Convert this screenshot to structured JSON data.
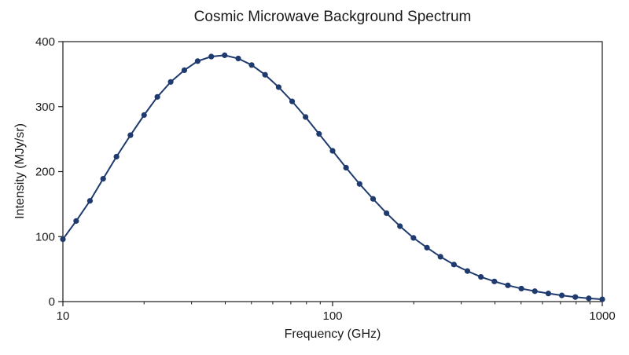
{
  "chart_data": {
    "type": "line",
    "title": "Cosmic Microwave Background Spectrum",
    "xlabel": "Frequency (GHz)",
    "ylabel": "Intensity (MJy/sr)",
    "x_scale": "log",
    "xlim": [
      10,
      1000
    ],
    "ylim": [
      0,
      400
    ],
    "x_ticks": [
      {
        "value": 10,
        "label": "10"
      },
      {
        "value": 100,
        "label": "100"
      },
      {
        "value": 1000,
        "label": "1000"
      }
    ],
    "y_ticks": [
      {
        "value": 0,
        "label": "0"
      },
      {
        "value": 100,
        "label": "100"
      },
      {
        "value": 200,
        "label": "200"
      },
      {
        "value": 300,
        "label": "300"
      },
      {
        "value": 400,
        "label": "400"
      }
    ],
    "grid": false,
    "legend": "none",
    "colors": {
      "series": "#1f3a6e",
      "axis": "#1a1a1a"
    },
    "series": [
      {
        "x": [
          10,
          11.2,
          12.6,
          14.1,
          15.8,
          17.8,
          20,
          22.4,
          25.1,
          28.2,
          31.6,
          35.5,
          39.8,
          44.7,
          50.1,
          56.2,
          63.1,
          70.8,
          79.4,
          89.1,
          100,
          112.2,
          125.9,
          141.3,
          158.5,
          177.8,
          199.5,
          223.9,
          251.2,
          281.8,
          316.2,
          354.8,
          398.1,
          446.7,
          501.2,
          562.3,
          631,
          707.9,
          794.3,
          891.3,
          1000
        ],
        "y": [
          96,
          124,
          155,
          189,
          223,
          256,
          287,
          315,
          338,
          356,
          370,
          377,
          379,
          374,
          364,
          349,
          330,
          308,
          284,
          258,
          232,
          206,
          181,
          158,
          136,
          116,
          98,
          83,
          69,
          57,
          47,
          38,
          31,
          25,
          20,
          16,
          12.5,
          9.5,
          7,
          5,
          3.5
        ]
      }
    ]
  }
}
